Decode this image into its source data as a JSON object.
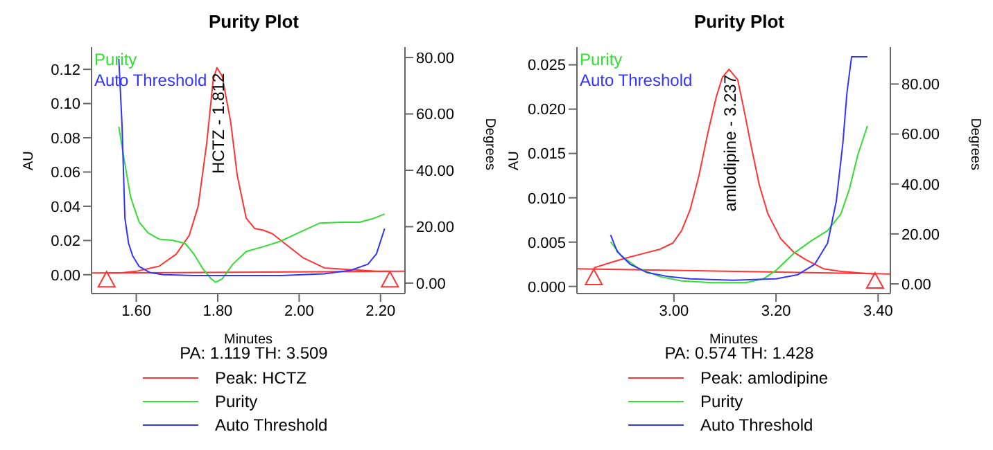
{
  "chart_data": [
    {
      "type": "line",
      "title": "Purity Plot",
      "xlabel": "Minutes",
      "ylabel": "AU",
      "y2label": "Degrees",
      "marker": "none",
      "legend": "bottom",
      "grid": false,
      "xlim": [
        1.49,
        2.26
      ],
      "xticks": [
        {
          "value": 1.6,
          "label": "1.60"
        },
        {
          "value": 1.8,
          "label": "1.80"
        },
        {
          "value": 2.0,
          "label": "2.00"
        },
        {
          "value": 2.2,
          "label": "2.20"
        }
      ],
      "ylim": [
        -0.011,
        0.133
      ],
      "yticks": [
        {
          "value": 0,
          "label": "0.00"
        },
        {
          "value": 0.02,
          "label": "0.02"
        },
        {
          "value": 0.04,
          "label": "0.04"
        },
        {
          "value": 0.06,
          "label": "0.06"
        },
        {
          "value": 0.08,
          "label": "0.08"
        },
        {
          "value": 0.1,
          "label": "0.10"
        },
        {
          "value": 0.12,
          "label": "0.12"
        }
      ],
      "y2lim": [
        -3.7,
        83.7
      ],
      "y2ticks": [
        {
          "value": 0,
          "label": "0.00"
        },
        {
          "value": 20,
          "label": "20.00"
        },
        {
          "value": 40,
          "label": "40.00"
        },
        {
          "value": 60,
          "label": "60.00"
        },
        {
          "value": 80,
          "label": "80.00"
        }
      ],
      "annotations": [
        {
          "text": "HCTZ - 1.812",
          "x": 1.798,
          "y": 0.121
        },
        "PA:  1.119  TH:  3.509"
      ],
      "series": [
        {
          "name": "Peak: HCTZ",
          "type": "line",
          "color": "#ff3333",
          "x": [
            1.527,
            1.56,
            1.6,
            1.656,
            1.698,
            1.73,
            1.752,
            1.773,
            1.789,
            1.798,
            1.811,
            1.832,
            1.848,
            1.87,
            1.891,
            1.912,
            1.934,
            1.966,
            2.009,
            2.062,
            2.126,
            2.19,
            2.223
          ],
          "values": [
            0.001,
            0.001,
            0.002,
            0.005,
            0.012,
            0.023,
            0.04,
            0.077,
            0.114,
            0.121,
            0.116,
            0.089,
            0.058,
            0.033,
            0.027,
            0.026,
            0.024,
            0.018,
            0.01,
            0.004,
            0.003,
            0.002,
            0.002
          ]
        },
        {
          "type": "line",
          "color": "#ff3333",
          "x": [
            1.49,
            2.26
          ],
          "values": [
            0.001,
            0.002
          ]
        },
        {
          "type": "scatter",
          "marker": "triangle",
          "color": "#ff3333",
          "x": [
            1.527,
            2.223
          ],
          "values": [
            -0.003,
            -0.003
          ]
        },
        {
          "name": "Purity",
          "type": "line",
          "axis": "y2",
          "color": "#33dd33",
          "x": [
            1.557,
            1.57,
            1.586,
            1.607,
            1.629,
            1.656,
            1.688,
            1.72,
            1.741,
            1.763,
            1.784,
            1.795,
            1.811,
            1.837,
            1.87,
            1.912,
            1.955,
            1.998,
            2.051,
            2.105,
            2.148,
            2.18,
            2.21
          ],
          "values": [
            55.5,
            43.9,
            30.5,
            21.6,
            17.8,
            15.6,
            15.2,
            14.1,
            10.4,
            5.2,
            1.5,
            0.3,
            1.5,
            6.7,
            11.2,
            12.9,
            14.9,
            17.8,
            21.3,
            21.6,
            21.6,
            22.8,
            24.5
          ]
        },
        {
          "name": "Auto Threshold",
          "type": "line",
          "axis": "y2",
          "color": "#3333ff",
          "x": [
            1.557,
            1.565,
            1.572,
            1.581,
            1.591,
            1.607,
            1.634,
            1.666,
            1.741,
            1.955,
            2.062,
            2.126,
            2.169,
            2.19,
            2.21
          ],
          "values": [
            79.6,
            55.8,
            23,
            14.1,
            9.7,
            5.9,
            3.7,
            3,
            2.7,
            2.7,
            3.3,
            4.5,
            6.7,
            10.4,
            19.3
          ]
        }
      ]
    },
    {
      "type": "line",
      "title": "Purity Plot",
      "xlabel": "Minutes",
      "ylabel": "AU",
      "y2label": "Degrees",
      "marker": "none",
      "legend": "bottom",
      "grid": false,
      "xlim": [
        2.81,
        3.424
      ],
      "xticks": [
        {
          "value": 3.0,
          "label": "3.00"
        },
        {
          "value": 3.2,
          "label": "3.20"
        },
        {
          "value": 3.4,
          "label": "3.40"
        }
      ],
      "ylim": [
        -0.0008,
        0.027
      ],
      "yticks": [
        {
          "value": 0,
          "label": "0.000"
        },
        {
          "value": 0.005,
          "label": "0.005"
        },
        {
          "value": 0.01,
          "label": "0.010"
        },
        {
          "value": 0.015,
          "label": "0.015"
        },
        {
          "value": 0.02,
          "label": "0.020"
        },
        {
          "value": 0.025,
          "label": "0.025"
        }
      ],
      "y2lim": [
        -3.86,
        94.8
      ],
      "y2ticks": [
        {
          "value": 0,
          "label": "0.00"
        },
        {
          "value": 20,
          "label": "20.00"
        },
        {
          "value": 40,
          "label": "40.00"
        },
        {
          "value": 60,
          "label": "60.00"
        },
        {
          "value": 80,
          "label": "80.00"
        }
      ],
      "annotations": [
        {
          "text": "amlodipine - 3.237",
          "x": 3.108,
          "y": 0.0245
        },
        "PA:  0.574  TH:  1.428"
      ],
      "series": [
        {
          "name": "Peak: amlodipine",
          "type": "line",
          "color": "#ff3333",
          "x": [
            2.843,
            2.876,
            2.906,
            2.939,
            2.973,
            2.998,
            3.015,
            3.032,
            3.049,
            3.066,
            3.083,
            3.095,
            3.108,
            3.125,
            3.137,
            3.15,
            3.167,
            3.184,
            3.209,
            3.234,
            3.259,
            3.293,
            3.327,
            3.369,
            3.394
          ],
          "values": [
            0.0021,
            0.0027,
            0.0032,
            0.0037,
            0.0042,
            0.0049,
            0.0063,
            0.0087,
            0.0125,
            0.0172,
            0.0214,
            0.0236,
            0.0245,
            0.0233,
            0.02,
            0.0162,
            0.0115,
            0.0082,
            0.0054,
            0.0039,
            0.003,
            0.002,
            0.0017,
            0.0015,
            0.0014
          ]
        },
        {
          "type": "line",
          "color": "#ff3333",
          "x": [
            2.81,
            3.424
          ],
          "values": [
            0.002,
            0.0014
          ]
        },
        {
          "type": "scatter",
          "marker": "triangle",
          "color": "#ff3333",
          "x": [
            2.843,
            3.394
          ],
          "values": [
            0.001,
            0.0006
          ]
        },
        {
          "name": "Purity",
          "type": "line",
          "axis": "y2",
          "color": "#33dd33",
          "x": [
            2.876,
            2.897,
            2.931,
            2.973,
            3.015,
            3.074,
            3.141,
            3.175,
            3.2,
            3.234,
            3.268,
            3.301,
            3.327,
            3.344,
            3.36,
            3.379
          ],
          "values": [
            16.8,
            11.2,
            6.2,
            2.9,
            1.2,
            0.5,
            0.5,
            2,
            5.4,
            12.1,
            17.1,
            21.3,
            28,
            38.1,
            51.5,
            63.2
          ]
        },
        {
          "name": "Auto Threshold",
          "type": "line",
          "axis": "y2",
          "color": "#3333ff",
          "x": [
            2.876,
            2.889,
            2.914,
            2.948,
            2.99,
            3.032,
            3.116,
            3.2,
            3.243,
            3.276,
            3.301,
            3.318,
            3.331,
            3.339,
            3.348,
            3.379
          ],
          "values": [
            19.6,
            12.9,
            7.9,
            4.5,
            2.9,
            2,
            1.5,
            2,
            3.7,
            7.9,
            16.3,
            33,
            56.5,
            76.6,
            90.9,
            90.9
          ]
        }
      ]
    }
  ]
}
